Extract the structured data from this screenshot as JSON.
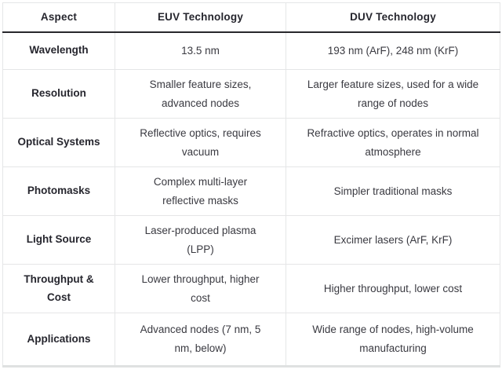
{
  "table": {
    "columns": [
      "Aspect",
      "EUV Technology",
      "DUV Technology"
    ],
    "rows": [
      {
        "aspect": "Wavelength",
        "euv": "13.5 nm",
        "duv": "193 nm (ArF), 248 nm (KrF)"
      },
      {
        "aspect": "Resolution",
        "euv": "Smaller feature sizes, advanced nodes",
        "duv": "Larger feature sizes, used for a wide range of nodes"
      },
      {
        "aspect": "Optical Systems",
        "euv": "Reflective optics, requires vacuum",
        "duv": "Refractive optics, operates in normal atmosphere"
      },
      {
        "aspect": "Photomasks",
        "euv": "Complex multi-layer reflective masks",
        "duv": "Simpler traditional masks"
      },
      {
        "aspect": "Light Source",
        "euv": "Laser-produced plasma (LPP)",
        "duv": "Excimer lasers (ArF, KrF)"
      },
      {
        "aspect": "Throughput & Cost",
        "euv": "Lower throughput, higher cost",
        "duv": "Higher throughput, lower cost"
      },
      {
        "aspect": "Applications",
        "euv": "Advanced nodes (7 nm, 5 nm, below)",
        "duv": "Wide range of nodes, high-volume manufacturing"
      }
    ],
    "colors": {
      "header_text": "#26262e",
      "body_text": "#3a3a41",
      "cell_border": "#e5e6e7",
      "header_rule": "#28282c",
      "bottom_rule": "#dfe1e1",
      "background": "#ffffff"
    }
  }
}
